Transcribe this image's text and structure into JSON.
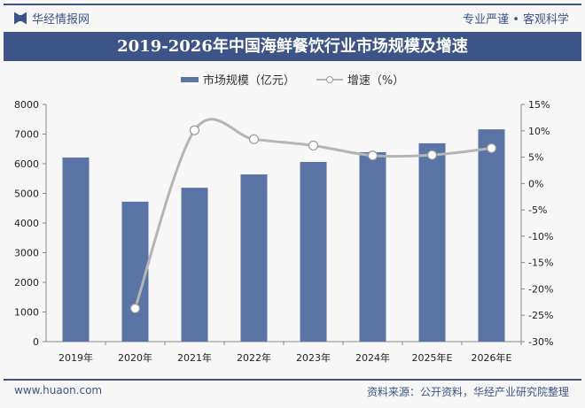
{
  "header": {
    "logo_text": "华经情报网",
    "slogan": "专业严谨 • 客观科学"
  },
  "footer": {
    "website": "www.huaon.com",
    "source": "资料来源：公开资料，华经产业研究院整理"
  },
  "chart_data": {
    "type": "bar+line",
    "title": "2019-2026年中国海鲜餐饮行业市场规模及增速",
    "categories": [
      "2019年",
      "2020年",
      "2021年",
      "2022年",
      "2023年",
      "2024年",
      "2025年E",
      "2026年E"
    ],
    "series": [
      {
        "name": "市场规模（亿元）",
        "type": "bar",
        "axis": "left",
        "color": "#5a74a6",
        "values": [
          6210,
          4720,
          5190,
          5640,
          6060,
          6390,
          6690,
          7160
        ]
      },
      {
        "name": "增速（%）",
        "type": "line",
        "axis": "right",
        "color": "#b5b5b5",
        "values": [
          null,
          -23.7,
          10.1,
          8.4,
          7.2,
          5.3,
          5.4,
          6.7
        ]
      }
    ],
    "left_axis": {
      "ylim": [
        0,
        8000
      ],
      "ticks": [
        0,
        1000,
        2000,
        3000,
        4000,
        5000,
        6000,
        7000,
        8000
      ]
    },
    "right_axis": {
      "ylim": [
        -30,
        15
      ],
      "ticks": [
        "15%",
        "10%",
        "5%",
        "0%",
        "-5%",
        "-10%",
        "-15%",
        "-20%",
        "-25%",
        "-30%"
      ]
    },
    "legend": "top",
    "grid": false
  }
}
